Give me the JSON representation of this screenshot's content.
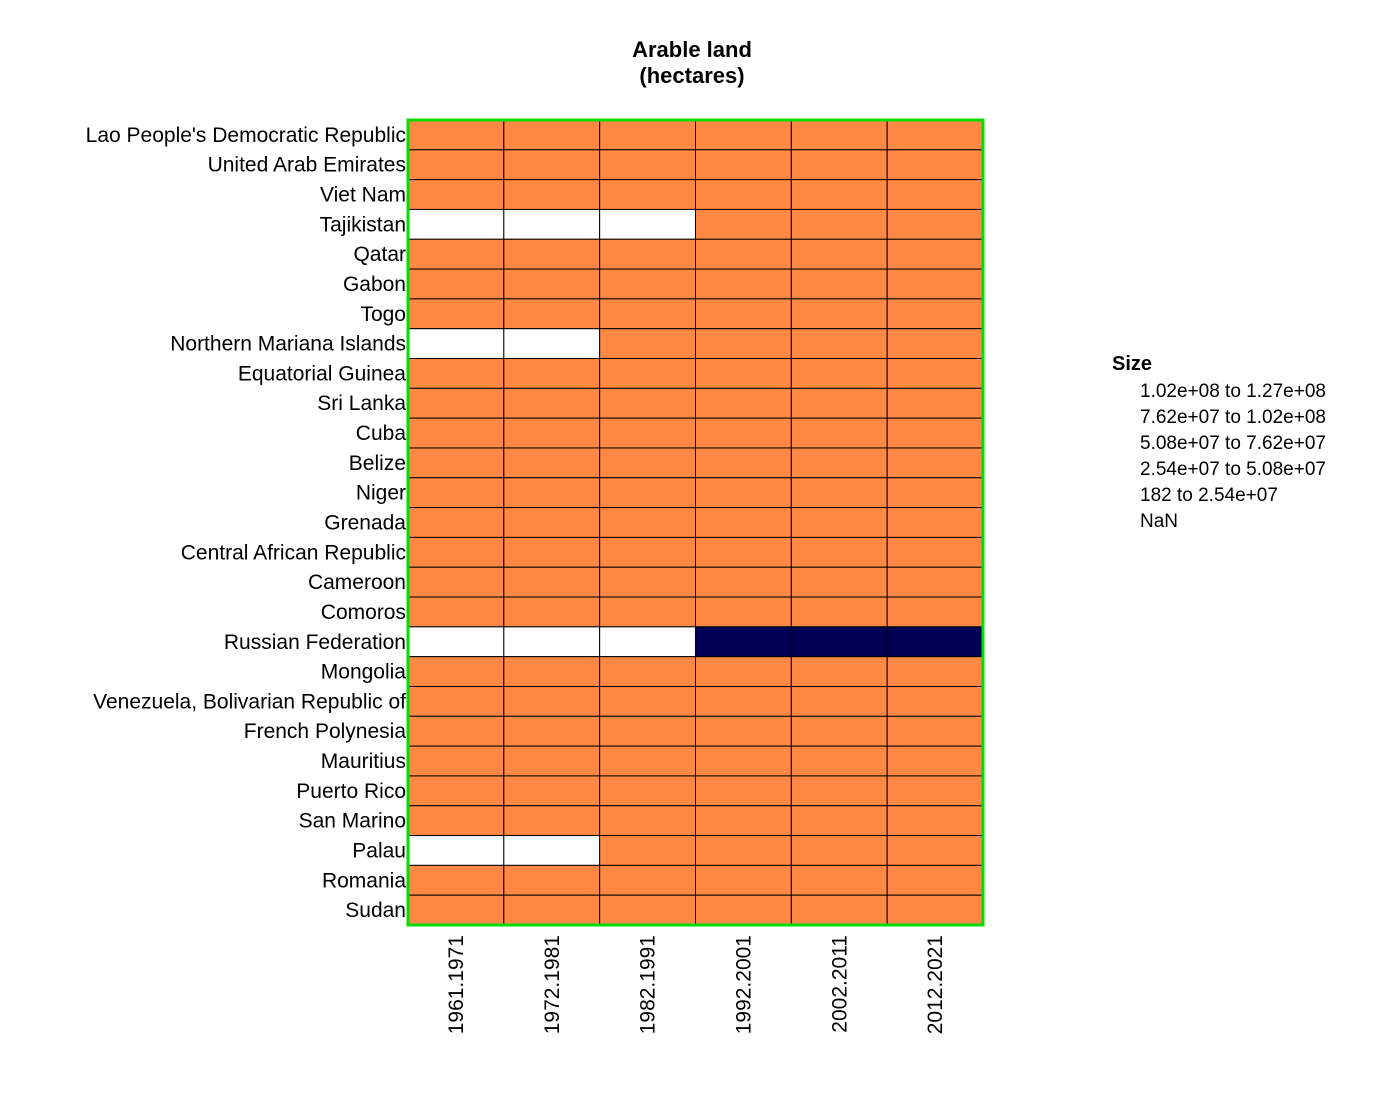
{
  "chart_data": {
    "type": "heatmap",
    "title": [
      "Arable land",
      "(hectares)"
    ],
    "rows": [
      "Lao People's Democratic Republic",
      "United Arab Emirates",
      "Viet Nam",
      "Tajikistan",
      "Qatar",
      "Gabon",
      "Togo",
      "Northern Mariana Islands",
      "Equatorial Guinea",
      "Sri Lanka",
      "Cuba",
      "Belize",
      "Niger",
      "Grenada",
      "Central African Republic",
      "Cameroon",
      "Comoros",
      "Russian Federation",
      "Mongolia",
      "Venezuela, Bolivarian Republic of",
      "French Polynesia",
      "Mauritius",
      "Puerto Rico",
      "San Marino",
      "Palau",
      "Romania",
      "Sudan"
    ],
    "columns": [
      "1961.1971",
      "1972.1981",
      "1982.1991",
      "1992.2001",
      "2002.2011",
      "2012.2021"
    ],
    "cell_bins": [
      [
        4,
        4,
        4,
        4,
        4,
        4
      ],
      [
        4,
        4,
        4,
        4,
        4,
        4
      ],
      [
        4,
        4,
        4,
        4,
        4,
        4
      ],
      [
        5,
        5,
        5,
        4,
        4,
        4
      ],
      [
        4,
        4,
        4,
        4,
        4,
        4
      ],
      [
        4,
        4,
        4,
        4,
        4,
        4
      ],
      [
        4,
        4,
        4,
        4,
        4,
        4
      ],
      [
        5,
        5,
        4,
        4,
        4,
        4
      ],
      [
        4,
        4,
        4,
        4,
        4,
        4
      ],
      [
        4,
        4,
        4,
        4,
        4,
        4
      ],
      [
        4,
        4,
        4,
        4,
        4,
        4
      ],
      [
        4,
        4,
        4,
        4,
        4,
        4
      ],
      [
        4,
        4,
        4,
        4,
        4,
        4
      ],
      [
        4,
        4,
        4,
        4,
        4,
        4
      ],
      [
        4,
        4,
        4,
        4,
        4,
        4
      ],
      [
        4,
        4,
        4,
        4,
        4,
        4
      ],
      [
        4,
        4,
        4,
        4,
        4,
        4
      ],
      [
        5,
        5,
        5,
        0,
        0,
        0
      ],
      [
        4,
        4,
        4,
        4,
        4,
        4
      ],
      [
        4,
        4,
        4,
        4,
        4,
        4
      ],
      [
        4,
        4,
        4,
        4,
        4,
        4
      ],
      [
        4,
        4,
        4,
        4,
        4,
        4
      ],
      [
        4,
        4,
        4,
        4,
        4,
        4
      ],
      [
        4,
        4,
        4,
        4,
        4,
        4
      ],
      [
        5,
        5,
        4,
        4,
        4,
        4
      ],
      [
        4,
        4,
        4,
        4,
        4,
        4
      ],
      [
        4,
        4,
        4,
        4,
        4,
        4
      ]
    ],
    "legend": {
      "title": "Size",
      "placement": "right",
      "bins": [
        {
          "from": "1.02e+08",
          "sep": "to",
          "to": "1.27e+08",
          "color": "#000055"
        },
        {
          "from": "7.62e+07",
          "sep": "to",
          "to": "1.02e+08",
          "color": "#2a2a8a"
        },
        {
          "from": "5.08e+07",
          "sep": "to",
          "to": "7.62e+07",
          "color": "#7f5fa0"
        },
        {
          "from": "2.54e+07",
          "sep": "to",
          "to": "5.08e+07",
          "color": "#d06a6a"
        },
        {
          "from": "182",
          "sep": "to",
          "to": "2.54e+07",
          "color": "#ff8844"
        },
        {
          "from": "NaN",
          "sep": "",
          "to": "",
          "color": "#ffffff"
        }
      ]
    },
    "frame_color": "#00e000",
    "grid_line_color": "#000000"
  }
}
